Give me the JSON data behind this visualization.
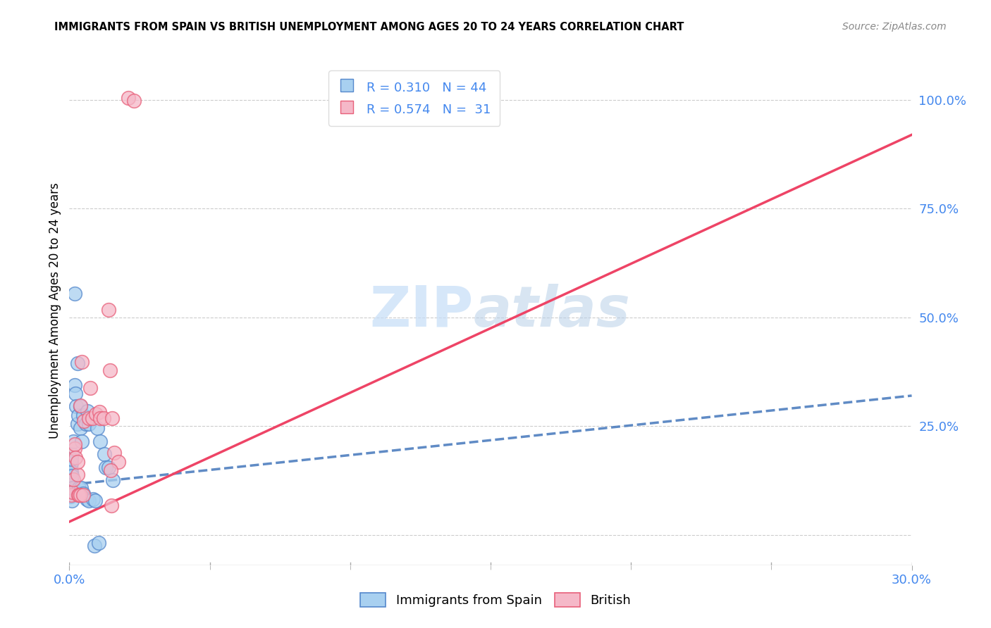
{
  "title": "IMMIGRANTS FROM SPAIN VS BRITISH UNEMPLOYMENT AMONG AGES 20 TO 24 YEARS CORRELATION CHART",
  "source": "Source: ZipAtlas.com",
  "ylabel": "Unemployment Among Ages 20 to 24 years",
  "right_yticks": [
    0.0,
    0.25,
    0.5,
    0.75,
    1.0
  ],
  "right_yticklabels": [
    "",
    "25.0%",
    "50.0%",
    "75.0%",
    "100.0%"
  ],
  "legend_blue_r": "R = 0.310",
  "legend_blue_n": "N = 44",
  "legend_pink_r": "R = 0.574",
  "legend_pink_n": "N =  31",
  "blue_color": "#a8d0f0",
  "pink_color": "#f5b8c8",
  "blue_edge_color": "#5588cc",
  "pink_edge_color": "#e8607a",
  "blue_line_color": "#4477bb",
  "pink_line_color": "#ee4466",
  "axis_tick_color": "#4488ee",
  "watermark_color": "#c5ddf7",
  "xmin": 0.0,
  "xmax": 0.3,
  "ymin": -0.07,
  "ymax": 1.1,
  "blue_scatter": [
    [
      0.0005,
      0.155
    ],
    [
      0.0008,
      0.185
    ],
    [
      0.0006,
      0.125
    ],
    [
      0.0007,
      0.165
    ],
    [
      0.0006,
      0.145
    ],
    [
      0.0005,
      0.115
    ],
    [
      0.0009,
      0.135
    ],
    [
      0.0005,
      0.095
    ],
    [
      0.0006,
      0.105
    ],
    [
      0.001,
      0.1
    ],
    [
      0.0012,
      0.108
    ],
    [
      0.0005,
      0.088
    ],
    [
      0.0008,
      0.078
    ],
    [
      0.0006,
      0.175
    ],
    [
      0.0015,
      0.215
    ],
    [
      0.0018,
      0.345
    ],
    [
      0.0022,
      0.325
    ],
    [
      0.0025,
      0.295
    ],
    [
      0.003,
      0.255
    ],
    [
      0.0032,
      0.275
    ],
    [
      0.0038,
      0.295
    ],
    [
      0.004,
      0.245
    ],
    [
      0.0045,
      0.215
    ],
    [
      0.005,
      0.275
    ],
    [
      0.0028,
      0.395
    ],
    [
      0.006,
      0.255
    ],
    [
      0.0065,
      0.285
    ],
    [
      0.0068,
      0.255
    ],
    [
      0.01,
      0.245
    ],
    [
      0.011,
      0.215
    ],
    [
      0.0125,
      0.185
    ],
    [
      0.013,
      0.155
    ],
    [
      0.014,
      0.155
    ],
    [
      0.0155,
      0.125
    ],
    [
      0.002,
      0.555
    ],
    [
      0.0035,
      0.108
    ],
    [
      0.0042,
      0.108
    ],
    [
      0.0048,
      0.095
    ],
    [
      0.0062,
      0.082
    ],
    [
      0.0068,
      0.078
    ],
    [
      0.0085,
      0.082
    ],
    [
      0.0092,
      0.078
    ],
    [
      0.009,
      -0.025
    ],
    [
      0.0105,
      -0.018
    ]
  ],
  "pink_scatter": [
    [
      0.021,
      1.005
    ],
    [
      0.023,
      0.998
    ],
    [
      0.0007,
      0.092
    ],
    [
      0.0012,
      0.098
    ],
    [
      0.0015,
      0.128
    ],
    [
      0.0018,
      0.198
    ],
    [
      0.002,
      0.208
    ],
    [
      0.0022,
      0.178
    ],
    [
      0.0028,
      0.138
    ],
    [
      0.003,
      0.168
    ],
    [
      0.0032,
      0.092
    ],
    [
      0.0033,
      0.092
    ],
    [
      0.0038,
      0.092
    ],
    [
      0.004,
      0.298
    ],
    [
      0.0045,
      0.398
    ],
    [
      0.005,
      0.092
    ],
    [
      0.0052,
      0.262
    ],
    [
      0.007,
      0.268
    ],
    [
      0.0075,
      0.338
    ],
    [
      0.0082,
      0.268
    ],
    [
      0.0095,
      0.278
    ],
    [
      0.0108,
      0.282
    ],
    [
      0.011,
      0.268
    ],
    [
      0.0122,
      0.268
    ],
    [
      0.0145,
      0.378
    ],
    [
      0.0152,
      0.268
    ],
    [
      0.014,
      0.518
    ],
    [
      0.016,
      0.188
    ],
    [
      0.0175,
      0.168
    ],
    [
      0.0148,
      0.148
    ],
    [
      0.015,
      0.068
    ]
  ],
  "blue_trend_x": [
    0.0,
    0.3
  ],
  "blue_trend_y": [
    0.115,
    0.32
  ],
  "pink_trend_x": [
    0.0,
    0.3
  ],
  "pink_trend_y": [
    0.03,
    0.92
  ]
}
